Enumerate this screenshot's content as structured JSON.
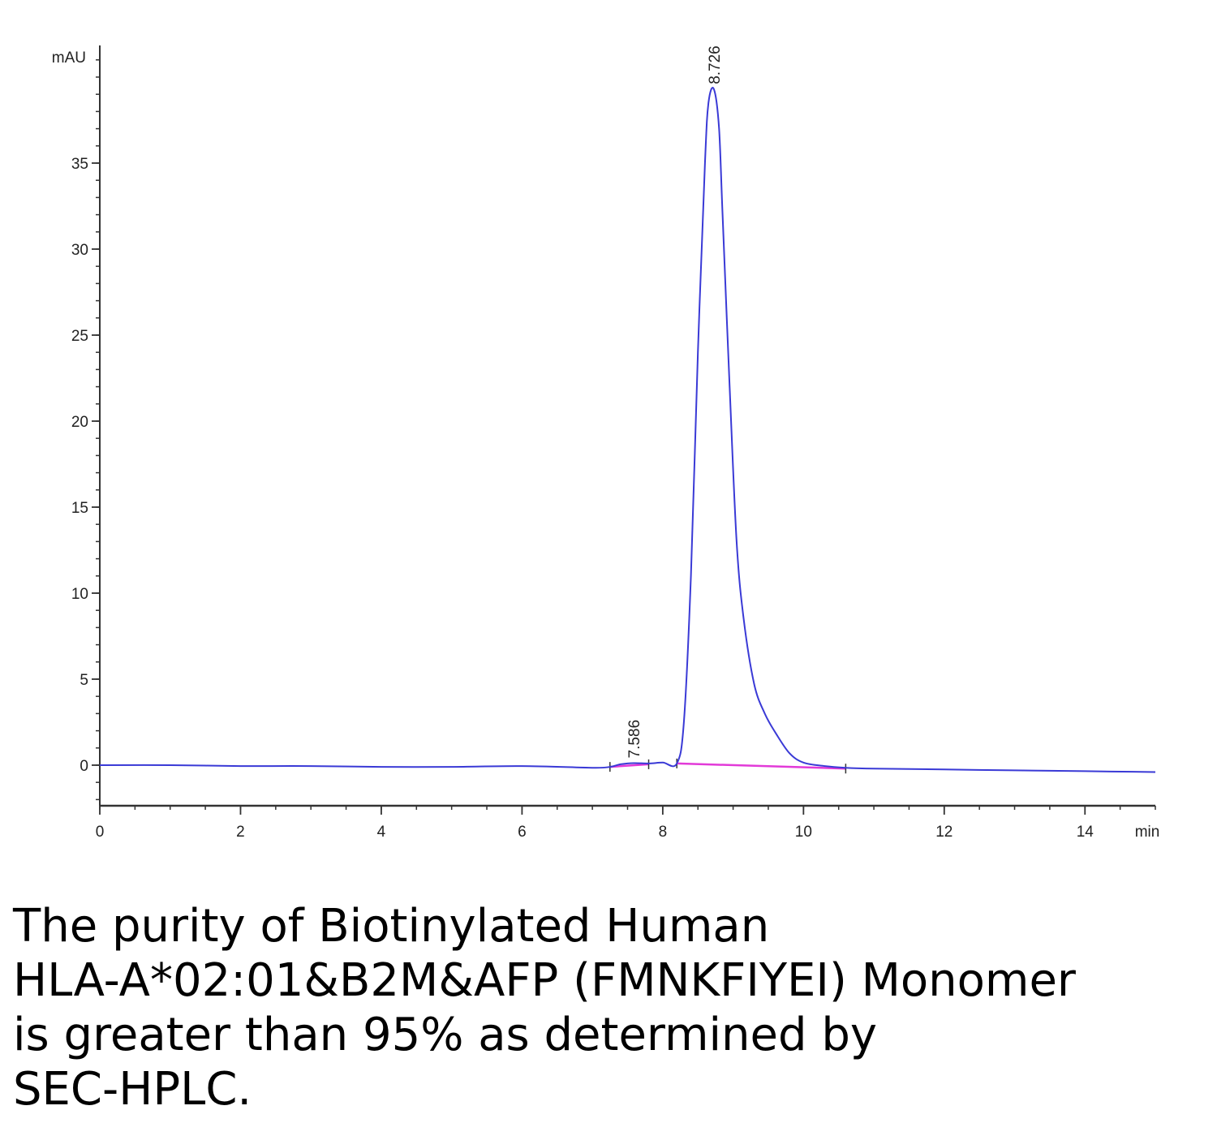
{
  "chart_data": {
    "type": "line",
    "xlabel": "min",
    "ylabel": "mAU",
    "xlim": [
      0,
      15
    ],
    "ylim": [
      -2.3,
      42
    ],
    "x_ticks": [
      0,
      2,
      4,
      6,
      8,
      10,
      12,
      14
    ],
    "y_ticks": [
      0,
      5,
      10,
      15,
      20,
      25,
      30,
      35
    ],
    "colors": {
      "signal": "#3a3ad6",
      "baseline": "#e23ad8",
      "axis": "#333333"
    },
    "series": [
      {
        "x": [
          0,
          1,
          2,
          3,
          4,
          5,
          6,
          7,
          7.25,
          7.4,
          7.586,
          7.8,
          8.0,
          8.2,
          8.3,
          8.4,
          8.5,
          8.6,
          8.65,
          8.726,
          8.8,
          8.85,
          8.95,
          9.05,
          9.15,
          9.3,
          9.45,
          9.6,
          9.8,
          10.0,
          10.3,
          10.6,
          11,
          12,
          13,
          14,
          15
        ],
        "values": [
          0.0,
          0.0,
          -0.05,
          -0.05,
          -0.1,
          -0.1,
          -0.05,
          -0.15,
          -0.1,
          0.05,
          0.12,
          0.1,
          0.15,
          0.1,
          2.5,
          11,
          24,
          35,
          38.5,
          39.3,
          37,
          32,
          22,
          13,
          8.5,
          4.7,
          3.0,
          1.9,
          0.7,
          0.15,
          -0.05,
          -0.15,
          -0.2,
          -0.25,
          -0.3,
          -0.35,
          -0.4
        ]
      }
    ],
    "baselines": [
      {
        "x": [
          7.25,
          7.8
        ],
        "values": [
          -0.1,
          0.05
        ]
      },
      {
        "x": [
          8.2,
          10.6
        ],
        "values": [
          0.1,
          -0.2
        ]
      }
    ],
    "peaks": [
      {
        "label": "7.586",
        "x": 7.586,
        "y": 0.12
      },
      {
        "label": "8.726",
        "x": 8.726,
        "y": 39.3
      }
    ]
  },
  "caption": {
    "lines": [
      "The purity of Biotinylated Human",
      "HLA-A*02:01&B2M&AFP (FMNKFIYEI) Monomer",
      "is greater than 95% as determined by",
      "SEC-HPLC."
    ]
  }
}
